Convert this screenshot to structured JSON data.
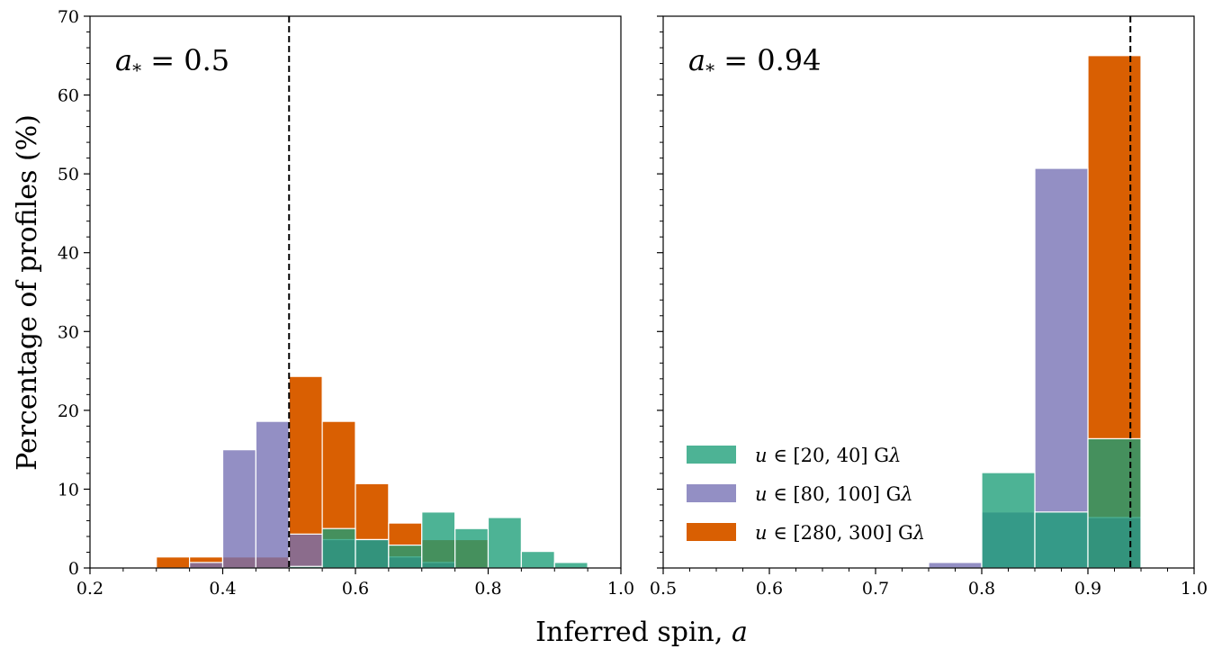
{
  "colors": {
    "series1": "#1b9e77",
    "series2": "#7570b3",
    "series3": "#d95f02",
    "frame": "#000000",
    "reference_line": "#000000"
  },
  "figure": {
    "ylabel": "Percentage of profiles (%)",
    "xlabel": "Inferred spin, a",
    "xlabel_text": "Inferred spin, ",
    "xlabel_var": "a"
  },
  "chart_data": [
    {
      "type": "bar",
      "annotation": "a* = 0.5",
      "annotation_var": "a",
      "annotation_sub": "*",
      "annotation_rest": " = 0.5",
      "xlim": [
        0.2,
        1.0
      ],
      "ylim": [
        0,
        70
      ],
      "xticks": [
        "0.2",
        "0.4",
        "0.6",
        "0.8",
        "1.0"
      ],
      "yticks": [
        "0",
        "10",
        "20",
        "30",
        "40",
        "50",
        "60",
        "70"
      ],
      "bin_width": 0.05,
      "reference_x": 0.5,
      "series": [
        {
          "name": "u ∈ [20, 40] Gλ",
          "bins": [
            0.5,
            0.55,
            0.6,
            0.65,
            0.7,
            0.75,
            0.8,
            0.85,
            0.9
          ],
          "values": [
            0.2,
            5.0,
            3.6,
            2.9,
            7.1,
            5.0,
            6.4,
            2.1,
            0.7
          ]
        },
        {
          "name": "u ∈ [80, 100] Gλ",
          "bins": [
            0.35,
            0.4,
            0.45,
            0.5,
            0.55,
            0.6,
            0.65,
            0.7
          ],
          "values": [
            0.7,
            15.0,
            18.6,
            4.3,
            3.6,
            3.6,
            1.4,
            0.7
          ]
        },
        {
          "name": "u ∈ [280, 300] Gλ",
          "bins": [
            0.3,
            0.35,
            0.4,
            0.45,
            0.5,
            0.55,
            0.6,
            0.65,
            0.7,
            0.75
          ],
          "values": [
            1.4,
            1.4,
            1.4,
            1.4,
            24.3,
            18.6,
            10.7,
            5.7,
            3.6,
            3.6
          ]
        }
      ]
    },
    {
      "type": "bar",
      "annotation": "a* = 0.94",
      "annotation_var": "a",
      "annotation_sub": "*",
      "annotation_rest": " = 0.94",
      "xlim": [
        0.5,
        1.0
      ],
      "ylim": [
        0,
        70
      ],
      "xticks": [
        "0.5",
        "0.6",
        "0.7",
        "0.8",
        "0.9",
        "1.0"
      ],
      "bin_width": 0.05,
      "reference_x": 0.94,
      "legend": "lower-left",
      "series": [
        {
          "name": "u ∈ [20, 40] Gλ",
          "bins": [
            0.8,
            0.85,
            0.9
          ],
          "values": [
            12.1,
            7.1,
            16.4
          ]
        },
        {
          "name": "u ∈ [80, 100] Gλ",
          "bins": [
            0.75,
            0.8,
            0.85,
            0.9
          ],
          "values": [
            0.7,
            7.1,
            50.7,
            6.4
          ]
        },
        {
          "name": "u ∈ [280, 300] Gλ",
          "bins": [
            0.8,
            0.85,
            0.9,
            0.95
          ],
          "values": [
            0.0,
            0.0,
            65.0,
            0.1
          ]
        }
      ]
    }
  ],
  "legend": {
    "items": [
      {
        "prefix": "u",
        "set": " ∈ [20, 40] G",
        "unit": "λ"
      },
      {
        "prefix": "u",
        "set": " ∈ [80, 100] G",
        "unit": "λ"
      },
      {
        "prefix": "u",
        "set": " ∈ [280, 300] G",
        "unit": "λ"
      }
    ]
  }
}
